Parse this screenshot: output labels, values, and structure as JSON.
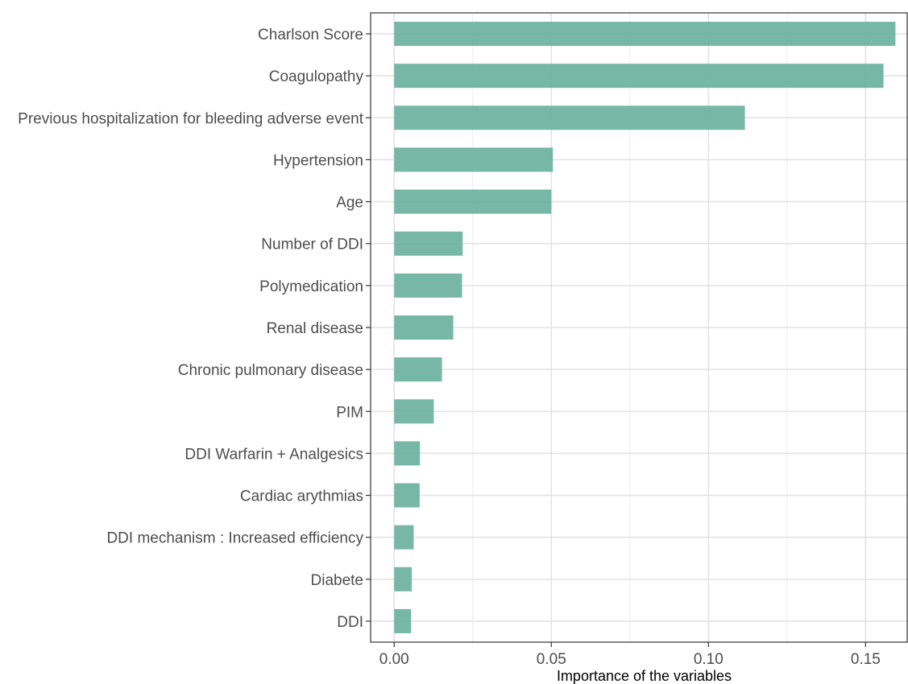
{
  "chart_data": {
    "type": "bar",
    "orientation": "horizontal",
    "title": "",
    "xlabel": "Importance of the variables",
    "ylabel": "",
    "xlim": [
      -0.0075,
      0.1635
    ],
    "xticks": [
      0.0,
      0.05,
      0.1,
      0.15
    ],
    "xtick_labels": [
      "0.00",
      "0.05",
      "0.10",
      "0.15"
    ],
    "grid": true,
    "legend": "none",
    "bar_color": "#6fb3a0",
    "categories": [
      "Charlson Score",
      "Coagulopathy",
      "Previous hospitalization for bleeding adverse event",
      "Hypertension",
      "Age",
      "Number of DDI",
      "Polymedication",
      "Renal disease",
      "Chronic pulmonary disease",
      "PIM",
      "DDI Warfarin + Analgesics",
      "Cardiac arythmias",
      "DDI mechanism : Increased efficiency",
      "Diabete",
      "DDI"
    ],
    "values": [
      0.1595,
      0.1557,
      0.1116,
      0.0505,
      0.05,
      0.0218,
      0.0216,
      0.0188,
      0.0152,
      0.0126,
      0.0082,
      0.0081,
      0.0062,
      0.0056,
      0.0054
    ]
  }
}
